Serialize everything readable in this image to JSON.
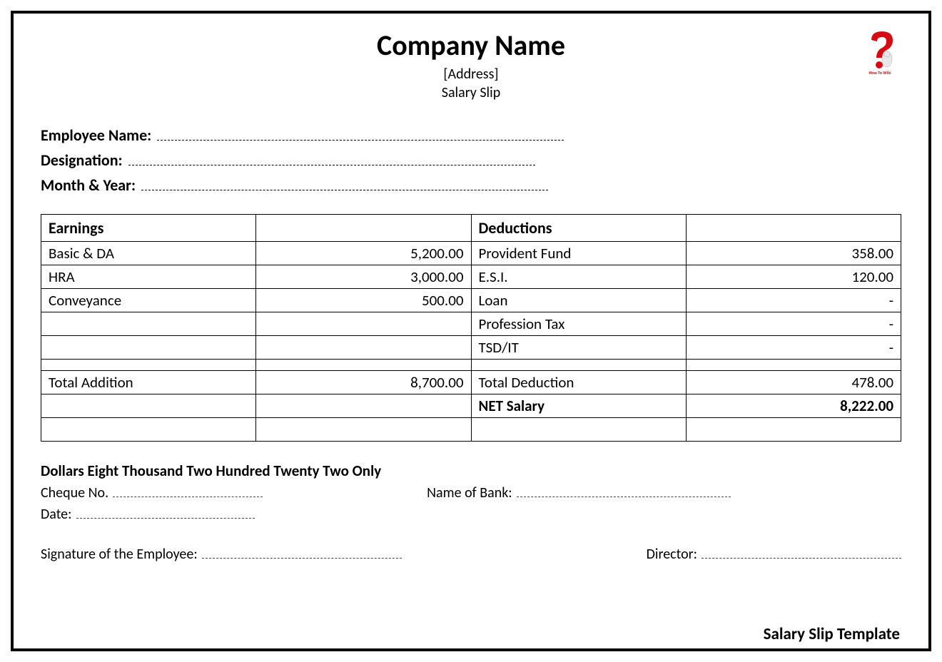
{
  "header": {
    "company_name": "Company Name",
    "address": "[Address]",
    "doc_title": "Salary Slip"
  },
  "logo": {
    "main_color": "#d60b12",
    "text": "How To Wiki",
    "text_color": "#d60b12"
  },
  "info_fields": {
    "employee_name_label": "Employee Name:",
    "designation_label": "Designation:",
    "month_year_label": "Month & Year:"
  },
  "table": {
    "headers": {
      "earnings": "Earnings",
      "deductions": "Deductions"
    },
    "rows": [
      {
        "earn_label": "Basic & DA",
        "earn_val": "5,200.00",
        "ded_label": "Provident Fund",
        "ded_val": "358.00"
      },
      {
        "earn_label": "HRA",
        "earn_val": "3,000.00",
        "ded_label": "E.S.I.",
        "ded_val": "120.00"
      },
      {
        "earn_label": "Conveyance",
        "earn_val": "500.00",
        "ded_label": "Loan",
        "ded_val": "-"
      },
      {
        "earn_label": "",
        "earn_val": "",
        "ded_label": "Profession Tax",
        "ded_val": "-"
      },
      {
        "earn_label": "",
        "earn_val": "",
        "ded_label": "TSD/IT",
        "ded_val": "-"
      }
    ],
    "totals": {
      "total_addition_label": "Total Addition",
      "total_addition_val": "8,700.00",
      "total_deduction_label": "Total Deduction",
      "total_deduction_val": "478.00",
      "net_salary_label": "NET Salary",
      "net_salary_val": "8,222.00"
    }
  },
  "amount_in_words": "Dollars Eight Thousand Two Hundred Twenty Two Only",
  "bottom": {
    "cheque_no_label": "Cheque No.",
    "bank_name_label": "Name of Bank:",
    "date_label": "Date:",
    "signature_employee_label": "Signature of the Employee:",
    "director_label": "Director:"
  },
  "template_label": "Salary Slip Template",
  "styles": {
    "border_color": "#000000",
    "background_color": "#ffffff",
    "font_family": "Calibri, Arial, sans-serif",
    "title_fontsize": 40,
    "body_fontsize": 21,
    "underline_style": "dashed"
  }
}
